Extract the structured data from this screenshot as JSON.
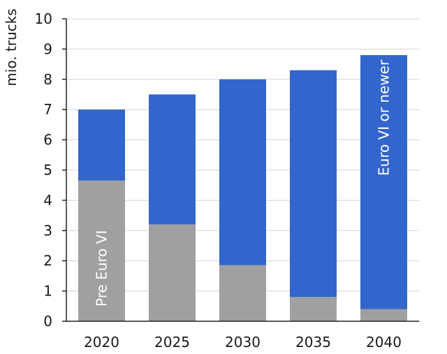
{
  "chart_data": {
    "type": "bar",
    "stacked": true,
    "categories": [
      "2020",
      "2025",
      "2030",
      "2035",
      "2040"
    ],
    "series": [
      {
        "name": "Pre Euro VI",
        "values": [
          4.65,
          3.2,
          1.85,
          0.8,
          0.4
        ],
        "color": "#a0a0a0"
      },
      {
        "name": "Euro VI or newer",
        "values": [
          2.35,
          4.3,
          6.15,
          7.5,
          8.4
        ],
        "color": "#3366cc"
      }
    ],
    "ylabel": "mio. trucks",
    "xlabel": "",
    "ylim": [
      0,
      10
    ],
    "yticks": [
      "0",
      "1",
      "2",
      "3",
      "4",
      "5",
      "6",
      "7",
      "8",
      "9",
      "10"
    ],
    "grid": true,
    "legend": "inline labels inside bars"
  }
}
